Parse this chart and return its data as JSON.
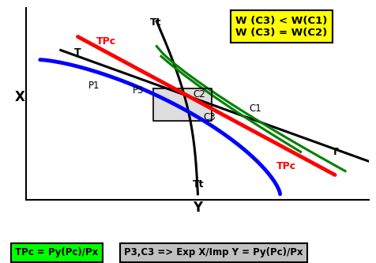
{
  "bg_color": "#ffffff",
  "annotation_box_text": "W (C3) < W(C1)\nW (C3) = W(C2)",
  "green_label_text": "TPc = Py(Pc)/Px",
  "gray_label_text": "P3,C3 => Exp X/Imp Y = Py(Pc)/Px",
  "label_T_top": "T",
  "label_TPc_top": "TPc",
  "label_Tt_top": "Tt",
  "label_P1": "P1",
  "label_P3": "P3",
  "label_C1": "C1",
  "label_C2": "C2",
  "label_C3": "C3",
  "label_T_bottom": "T",
  "label_TPc_bottom": "TPc",
  "label_Tt_bottom": "Tt",
  "xlabel": "Y",
  "ylabel": "X"
}
